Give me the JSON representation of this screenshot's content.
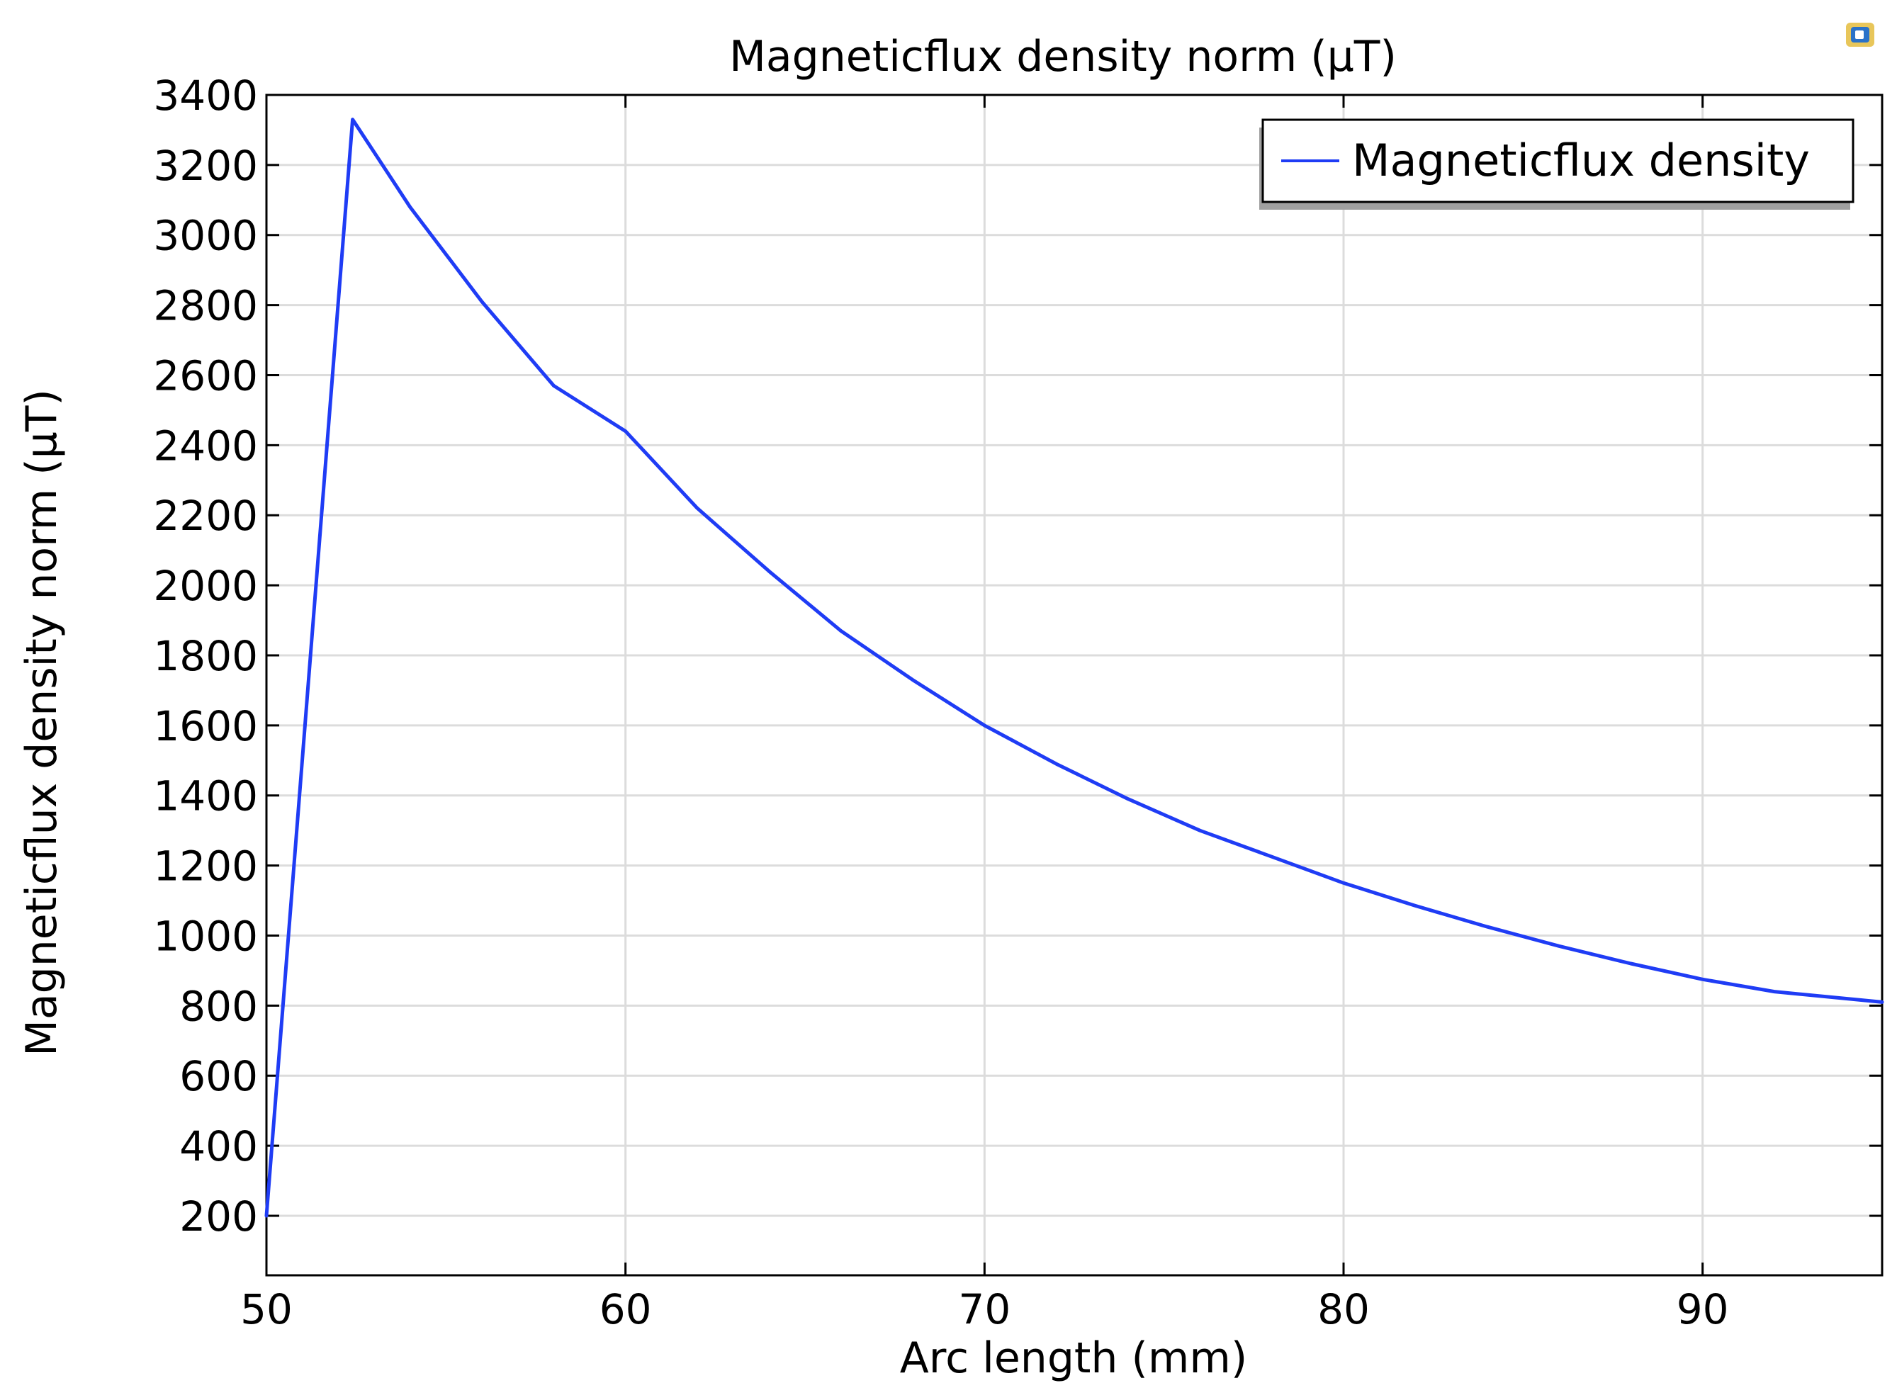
{
  "chart_data": {
    "type": "line",
    "title": "Magneticflux density norm (µT)",
    "xlabel": "Arc length (mm)",
    "ylabel": "Magneticflux density norm (µT)",
    "xlim": [
      50,
      95
    ],
    "ylim": [
      30,
      3400
    ],
    "xticks": [
      50,
      60,
      70,
      80,
      90
    ],
    "yticks": [
      200,
      400,
      600,
      800,
      1000,
      1200,
      1400,
      1600,
      1800,
      2000,
      2200,
      2400,
      2600,
      2800,
      3000,
      3200,
      3400
    ],
    "grid": true,
    "legend_position": "top-right",
    "series": [
      {
        "name": "Magneticflux density",
        "color": "#1f3cf5",
        "x": [
          50,
          52.4,
          54,
          56,
          58,
          60,
          62,
          64,
          66,
          68,
          70,
          72,
          74,
          76,
          78,
          80,
          82,
          84,
          86,
          88,
          90,
          92,
          95
        ],
        "y": [
          200,
          3330,
          3080,
          2810,
          2570,
          2440,
          2220,
          2040,
          1870,
          1730,
          1600,
          1490,
          1390,
          1300,
          1225,
          1150,
          1085,
          1025,
          970,
          920,
          875,
          840,
          810
        ]
      }
    ]
  },
  "corner_icon": "app-logo-icon"
}
